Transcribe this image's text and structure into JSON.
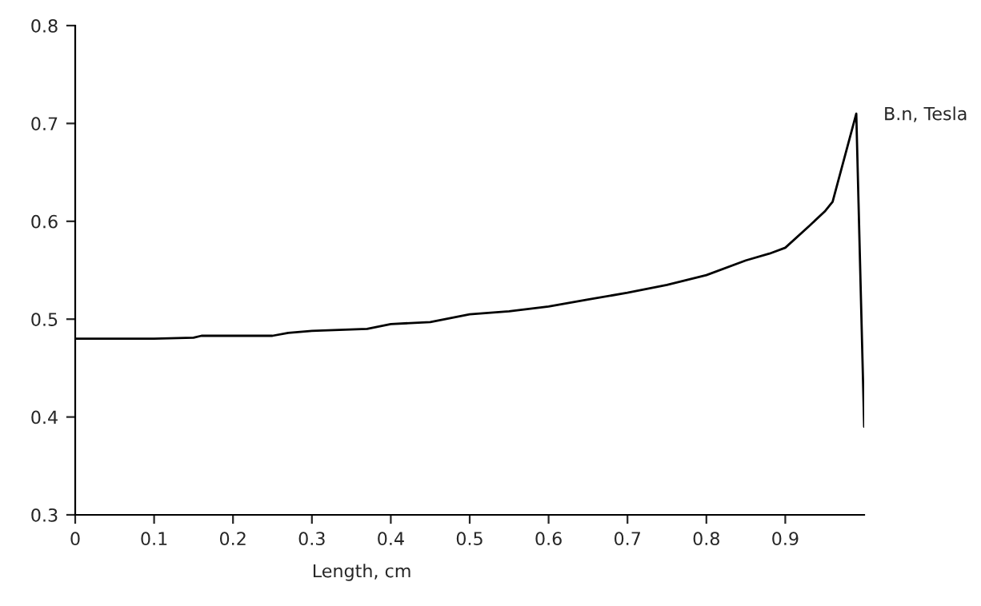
{
  "chart_data": {
    "type": "line",
    "xlabel": "Length, cm",
    "ylabel": "B.n, Tesla",
    "x": [
      0,
      0.1,
      0.15,
      0.16,
      0.25,
      0.27,
      0.3,
      0.37,
      0.4,
      0.45,
      0.5,
      0.55,
      0.6,
      0.65,
      0.7,
      0.75,
      0.8,
      0.85,
      0.88,
      0.9,
      0.93,
      0.95,
      0.96,
      0.98,
      0.99,
      1.0
    ],
    "series": [
      {
        "color": "#000000",
        "values": [
          0.48,
          0.48,
          0.481,
          0.483,
          0.483,
          0.486,
          0.488,
          0.49,
          0.495,
          0.497,
          0.505,
          0.508,
          0.513,
          0.52,
          0.527,
          0.535,
          0.545,
          0.56,
          0.567,
          0.573,
          0.595,
          0.61,
          0.62,
          0.68,
          0.71,
          0.39
        ]
      }
    ],
    "xlim": [
      0,
      1
    ],
    "xticks": [
      0,
      0.1,
      0.2,
      0.3,
      0.4,
      0.5,
      0.6,
      0.7,
      0.8,
      0.9
    ],
    "ylim": [
      0.3,
      0.8
    ],
    "yticks": [
      0.3,
      0.4,
      0.5,
      0.6,
      0.7,
      0.8
    ],
    "grid": false,
    "legend": false
  }
}
